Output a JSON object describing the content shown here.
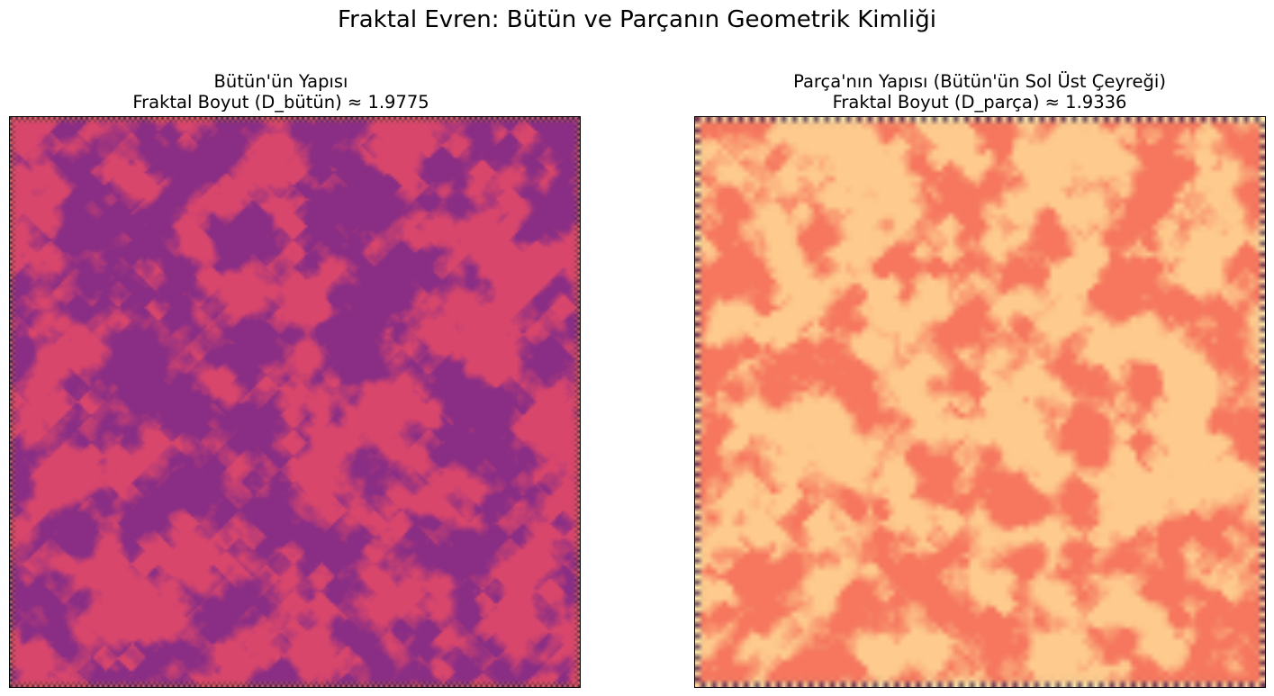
{
  "figure": {
    "suptitle": "Fraktal Evren: Bütün ve Parçanın Geometrik Kimliği"
  },
  "chart_data": [
    {
      "type": "heatmap",
      "title": "Bütün'ün Yapısı",
      "subtitle": "Fraktal Boyut (D_bütün) ≈ 1.9775",
      "colormap": "magma",
      "colors": {
        "low": "#8a2e85",
        "high": "#d8466c",
        "edge_dark": "#0b0724",
        "edge_bright": "#fb8861"
      },
      "axes_visible": false,
      "grid": false,
      "fractal_dimension": 1.9775
    },
    {
      "type": "heatmap",
      "title": "Parça'nın Yapısı (Bütün'ün Sol Üst Çeyreği)",
      "subtitle": "Fraktal Boyut (D_parça) ≈ 1.9336",
      "colormap": "magma",
      "colors": {
        "low": "#f6775e",
        "high": "#feca8d",
        "edge_dark": "#1d1147",
        "edge_bright": "#fcfdbf"
      },
      "axes_visible": false,
      "grid": false,
      "fractal_dimension": 1.9336
    }
  ]
}
